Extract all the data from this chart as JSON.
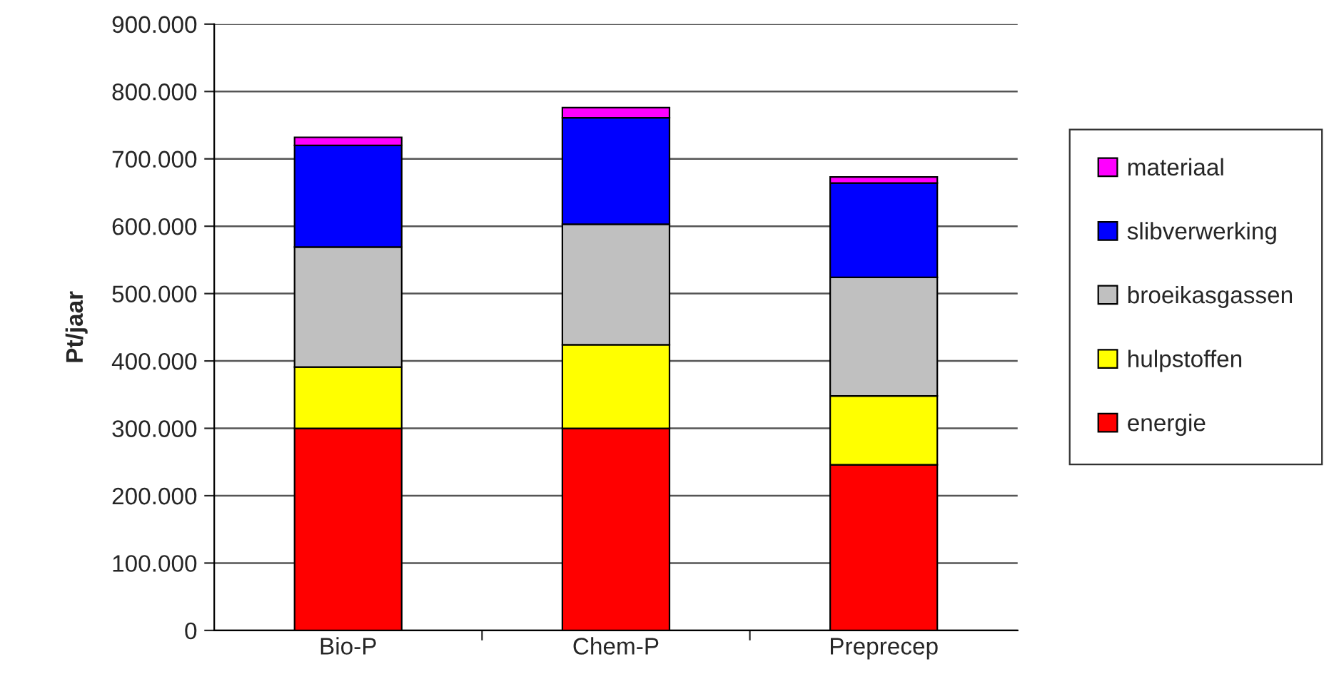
{
  "chart_data": {
    "type": "bar",
    "stacked": true,
    "ylabel": "Pt/jaar",
    "categories": [
      "Bio-P",
      "Chem-P",
      "Preprecep"
    ],
    "series": [
      {
        "name": "energie",
        "color": "#ff0000",
        "values": [
          300000,
          300000,
          246000
        ]
      },
      {
        "name": "hulpstoffen",
        "color": "#ffff00",
        "values": [
          91000,
          124000,
          102000
        ]
      },
      {
        "name": "broeikasgassen",
        "color": "#c0c0c0",
        "values": [
          178000,
          179000,
          176000
        ]
      },
      {
        "name": "slibverwerking",
        "color": "#0000ff",
        "values": [
          151000,
          158000,
          140000
        ]
      },
      {
        "name": "materiaal",
        "color": "#ff00ff",
        "values": [
          12000,
          15000,
          9000
        ]
      }
    ],
    "ylim": [
      0,
      900000
    ],
    "yticks": [
      {
        "value": 0,
        "label": "0"
      },
      {
        "value": 100000,
        "label": "100.000"
      },
      {
        "value": 200000,
        "label": "200.000"
      },
      {
        "value": 300000,
        "label": "300.000"
      },
      {
        "value": 400000,
        "label": "400.000"
      },
      {
        "value": 500000,
        "label": "500.000"
      },
      {
        "value": 600000,
        "label": "600.000"
      },
      {
        "value": 700000,
        "label": "700.000"
      },
      {
        "value": 800000,
        "label": "800.000"
      },
      {
        "value": 900000,
        "label": "900.000"
      }
    ],
    "grid": "y",
    "legend": "right"
  }
}
